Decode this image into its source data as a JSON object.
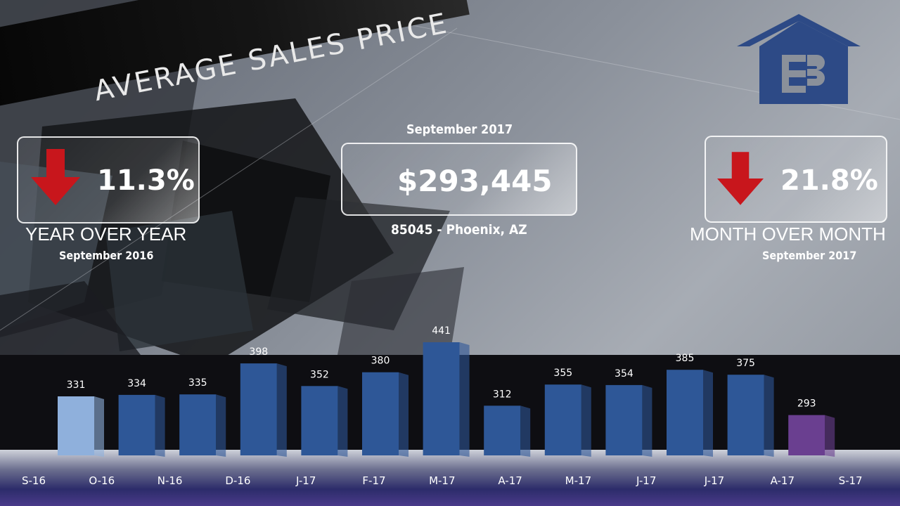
{
  "header": {
    "title": "AVERAGE SALES PRICE"
  },
  "logo": {
    "icon": "house-cb-logo-icon",
    "color": "#2d4a86"
  },
  "center": {
    "date": "September 2017",
    "value": "$293,445",
    "location": "85045 - Phoenix, AZ"
  },
  "year_over_year": {
    "value": "11.3%",
    "label": "YEAR OVER YEAR",
    "date": "September 2016",
    "direction": "down",
    "arrow_color": "#c8161c"
  },
  "month_over_month": {
    "value": "21.8%",
    "label": "MONTH OVER MONTH",
    "date": "September 2017",
    "direction": "down",
    "arrow_color": "#c8161c"
  },
  "chart_data": {
    "type": "bar",
    "categories": [
      "S-16",
      "O-16",
      "N-16",
      "D-16",
      "J-17",
      "F-17",
      "M-17",
      "A-17",
      "M-17",
      "J-17",
      "J-17",
      "A-17",
      "S-17"
    ],
    "values": [
      331,
      334,
      335,
      398,
      352,
      380,
      441,
      312,
      355,
      354,
      385,
      375,
      293
    ],
    "value_labels": [
      "331",
      "334",
      "335",
      "398",
      "352",
      "380",
      "441",
      "312",
      "355",
      "354",
      "385",
      "375",
      "293"
    ],
    "colors": {
      "first": "#8fb0dc",
      "default": "#2e5797",
      "last": "#6a3f90"
    }
  }
}
